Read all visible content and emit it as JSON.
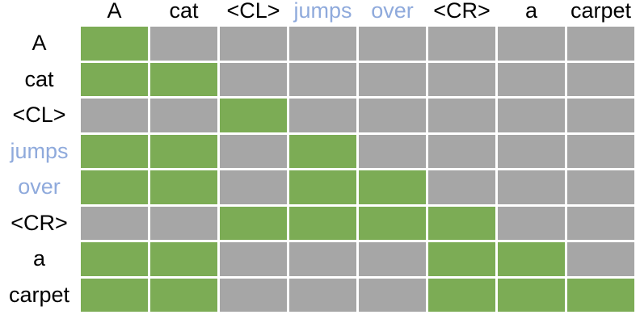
{
  "colors": {
    "allowed": "#7CAC55",
    "masked": "#A6A6A6",
    "highlight": "#8FAADC",
    "token_text": "#000000",
    "grid_line": "#FFFFFF",
    "background": "#FFFFFF"
  },
  "chart_data": {
    "type": "heatmap",
    "x_labels": [
      "A",
      "cat",
      "<CL>",
      "jumps",
      "over",
      "<CR>",
      "a",
      "carpet"
    ],
    "y_labels": [
      "A",
      "cat",
      "<CL>",
      "jumps",
      "over",
      "<CR>",
      "a",
      "carpet"
    ],
    "highlighted_labels": [
      "jumps",
      "over"
    ],
    "value_colors": {
      "1": "green (unmasked)",
      "0": "gray (masked)"
    },
    "matrix": [
      [
        1,
        0,
        0,
        0,
        0,
        0,
        0,
        0
      ],
      [
        1,
        1,
        0,
        0,
        0,
        0,
        0,
        0
      ],
      [
        0,
        0,
        1,
        0,
        0,
        0,
        0,
        0
      ],
      [
        1,
        1,
        0,
        1,
        0,
        0,
        0,
        0
      ],
      [
        1,
        1,
        0,
        1,
        1,
        0,
        0,
        0
      ],
      [
        0,
        0,
        1,
        1,
        1,
        1,
        0,
        0
      ],
      [
        1,
        1,
        0,
        0,
        0,
        1,
        1,
        0
      ],
      [
        1,
        1,
        0,
        0,
        0,
        1,
        1,
        1
      ]
    ],
    "grid_on": true,
    "legend_position": "none"
  }
}
